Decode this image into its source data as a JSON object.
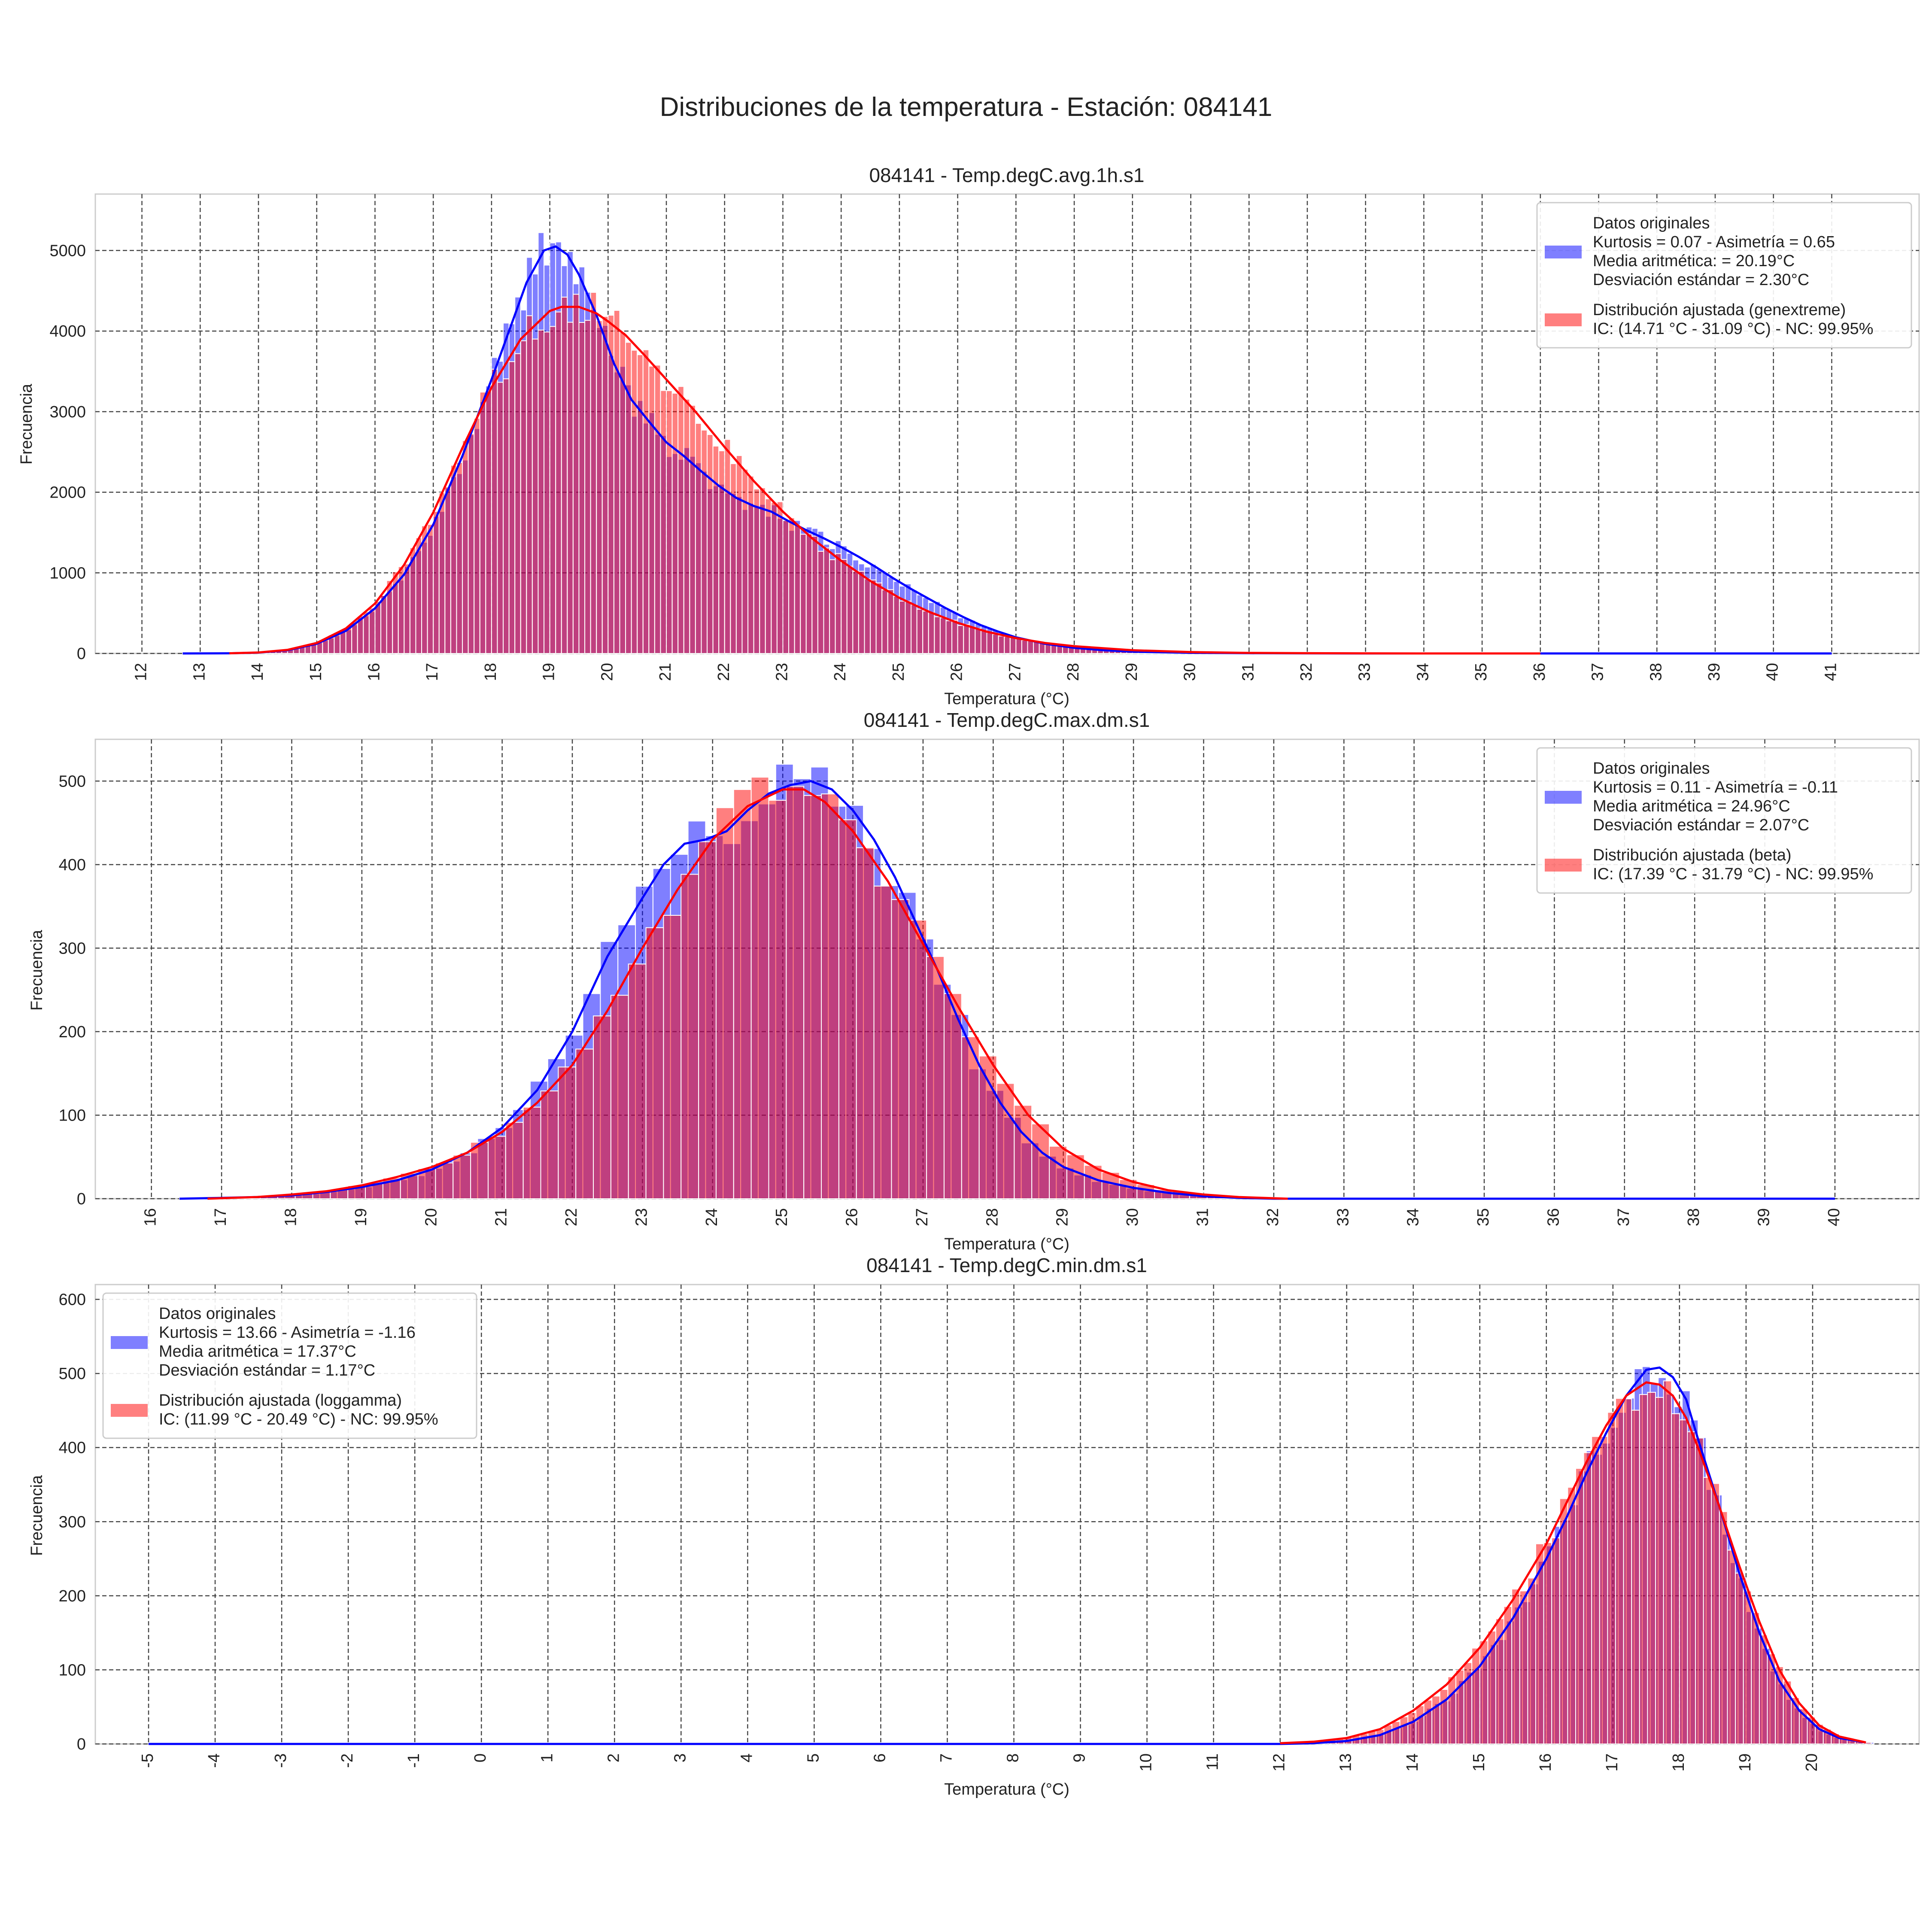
{
  "figure": {
    "title": "Distribuciones de la temperatura - Estación: 084141"
  },
  "chart_data": [
    {
      "type": "histogram",
      "title": "084141 - Temp.degC.avg.1h.s1",
      "xlabel": "Temperatura (°C)",
      "ylabel": "Frecuencia",
      "xlim": [
        11.2,
        42.5
      ],
      "ylim": [
        0,
        5700
      ],
      "xticks": [
        12,
        13,
        14,
        15,
        16,
        17,
        18,
        19,
        20,
        21,
        22,
        23,
        24,
        25,
        26,
        27,
        28,
        29,
        30,
        31,
        32,
        33,
        34,
        35,
        36,
        37,
        38,
        39,
        40,
        41
      ],
      "xtick_labels": [
        "12",
        "13",
        "14",
        "15",
        "16",
        "17",
        "18",
        "19",
        "20",
        "21",
        "22",
        "23",
        "24",
        "25",
        "26",
        "27",
        "28",
        "29",
        "30",
        "31",
        "32",
        "33",
        "34",
        "35",
        "36",
        "37",
        "38",
        "39",
        "40",
        "41"
      ],
      "yticks": [
        0,
        1000,
        2000,
        3000,
        4000,
        5000
      ],
      "ytick_labels": [
        "0",
        "1000",
        "2000",
        "3000",
        "4000",
        "5000"
      ],
      "grid": true,
      "legend_position": "upper right",
      "bin_width": 0.1,
      "series": [
        {
          "name": "Datos originales",
          "legend_lines": [
            "Datos originales",
            "Kurtosis = 0.07 - Asimetría = 0.65",
            "Media aritmética: = 20.19°C",
            "Desviación estándar = 2.30°C"
          ],
          "color": "#0000ff",
          "curve": {
            "x": [
              12.7,
              13.5,
              14,
              14.5,
              15,
              15.5,
              16,
              16.5,
              17,
              17.5,
              18,
              18.3,
              18.6,
              18.9,
              19.1,
              19.3,
              19.5,
              19.8,
              20.1,
              20.4,
              20.7,
              21,
              21.3,
              21.6,
              21.9,
              22.2,
              22.5,
              22.8,
              23.1,
              23.4,
              23.7,
              24,
              24.3,
              24.6,
              24.9,
              25.2,
              25.5,
              25.8,
              26.1,
              26.4,
              26.7,
              27,
              27.5,
              28,
              28.5,
              29,
              30,
              31,
              32,
              33,
              34,
              35,
              36,
              37,
              38,
              39,
              40,
              41
            ],
            "y": [
              0,
              2,
              10,
              40,
              120,
              280,
              560,
              980,
              1600,
              2450,
              3400,
              4000,
              4600,
              5000,
              5050,
              4950,
              4700,
              4200,
              3600,
              3150,
              2880,
              2620,
              2450,
              2260,
              2080,
              1930,
              1830,
              1760,
              1640,
              1530,
              1430,
              1320,
              1200,
              1070,
              930,
              800,
              680,
              560,
              450,
              350,
              270,
              200,
              120,
              70,
              40,
              22,
              8,
              3,
              1,
              0,
              0,
              0,
              0,
              0,
              0,
              0,
              0,
              0
            ]
          }
        },
        {
          "name": "Distribución ajustada (genextreme)",
          "legend_lines": [
            "Distribución ajustada (genextreme)",
            "IC: (14.71 °C - 31.09 °C) - NC: 99.95%"
          ],
          "color": "#ff0000",
          "curve": {
            "x": [
              13.5,
              14,
              14.5,
              15,
              15.5,
              16,
              16.5,
              17,
              17.5,
              18,
              18.5,
              19,
              19.2,
              19.5,
              19.8,
              20,
              20.3,
              20.6,
              21,
              21.5,
              22,
              22.5,
              23,
              23.5,
              24,
              24.5,
              25,
              25.5,
              26,
              26.5,
              27,
              27.5,
              28,
              29,
              30,
              31,
              32,
              33,
              34,
              35,
              36
            ],
            "y": [
              2,
              12,
              45,
              130,
              310,
              620,
              1100,
              1750,
              2550,
              3300,
              3900,
              4250,
              4300,
              4300,
              4220,
              4120,
              3950,
              3720,
              3400,
              3000,
              2560,
              2140,
              1760,
              1430,
              1150,
              900,
              690,
              520,
              380,
              270,
              190,
              130,
              90,
              40,
              17,
              7,
              3,
              1,
              0,
              0,
              0
            ]
          }
        }
      ]
    },
    {
      "type": "histogram",
      "title": "084141 - Temp.degC.max.dm.s1",
      "xlabel": "Temperatura (°C)",
      "ylabel": "Frecuencia",
      "xlim": [
        15.2,
        41.2
      ],
      "ylim": [
        0,
        550
      ],
      "xticks": [
        16,
        17,
        18,
        19,
        20,
        21,
        22,
        23,
        24,
        25,
        26,
        27,
        28,
        29,
        30,
        31,
        32,
        33,
        34,
        35,
        36,
        37,
        38,
        39,
        40
      ],
      "xtick_labels": [
        "16",
        "17",
        "18",
        "19",
        "20",
        "21",
        "22",
        "23",
        "24",
        "25",
        "26",
        "27",
        "28",
        "29",
        "30",
        "31",
        "32",
        "33",
        "34",
        "35",
        "36",
        "37",
        "38",
        "39",
        "40"
      ],
      "yticks": [
        0,
        100,
        200,
        300,
        400,
        500
      ],
      "ytick_labels": [
        "0",
        "100",
        "200",
        "300",
        "400",
        "500"
      ],
      "grid": true,
      "legend_position": "upper right",
      "bin_width": 0.25,
      "series": [
        {
          "name": "Datos originales",
          "legend_lines": [
            "Datos originales",
            "Kurtosis = 0.11 - Asimetría = -0.11",
            "Media aritmética = 24.96°C",
            "Desviación estándar = 2.07°C"
          ],
          "color": "#0000ff",
          "curve": {
            "x": [
              16.4,
              17,
              17.5,
              18,
              18.5,
              19,
              19.5,
              20,
              20.5,
              21,
              21.5,
              22,
              22.5,
              23,
              23.3,
              23.6,
              23.9,
              24.2,
              24.5,
              24.8,
              25.1,
              25.4,
              25.7,
              26,
              26.3,
              26.6,
              26.9,
              27.2,
              27.5,
              27.8,
              28.1,
              28.4,
              28.7,
              29,
              29.5,
              30,
              30.5,
              31,
              31.5,
              32,
              33,
              34,
              35,
              36,
              37,
              38,
              39,
              40
            ],
            "y": [
              0,
              1,
              2,
              4,
              8,
              14,
              22,
              35,
              55,
              85,
              130,
              200,
              290,
              360,
              400,
              425,
              430,
              440,
              465,
              485,
              495,
              500,
              490,
              465,
              430,
              385,
              330,
              275,
              215,
              160,
              115,
              80,
              55,
              38,
              22,
              13,
              7,
              3,
              1,
              0,
              0,
              0,
              0,
              0,
              0,
              0,
              0,
              0
            ]
          }
        },
        {
          "name": "Distribución ajustada (beta)",
          "legend_lines": [
            "Distribución ajustada (beta)",
            "IC: (17.39 °C - 31.79 °C) - NC: 99.95%"
          ],
          "color": "#ff0000",
          "curve": {
            "x": [
              16.8,
              17.5,
              18,
              18.5,
              19,
              19.5,
              20,
              20.5,
              21,
              21.5,
              22,
              22.5,
              23,
              23.5,
              24,
              24.5,
              25,
              25.3,
              25.6,
              26,
              26.5,
              27,
              27.5,
              28,
              28.5,
              29,
              29.5,
              30,
              30.5,
              31,
              31.5,
              32.2
            ],
            "y": [
              0,
              2,
              5,
              9,
              16,
              26,
              38,
              55,
              80,
              115,
              160,
              225,
              300,
              370,
              430,
              470,
              490,
              490,
              475,
              440,
              380,
              305,
              230,
              160,
              100,
              60,
              35,
              20,
              10,
              5,
              2,
              0
            ]
          }
        }
      ]
    },
    {
      "type": "histogram",
      "title": "084141 - Temp.degC.min.dm.s1",
      "xlabel": "Temperatura (°C)",
      "ylabel": "Frecuencia",
      "xlim": [
        -5.8,
        21.6
      ],
      "ylim": [
        0,
        620
      ],
      "xticks": [
        -5,
        -4,
        -3,
        -2,
        -1,
        0,
        1,
        2,
        3,
        4,
        5,
        6,
        7,
        8,
        9,
        10,
        11,
        12,
        13,
        14,
        15,
        16,
        17,
        18,
        19,
        20
      ],
      "xtick_labels": [
        "-5",
        "-4",
        "-3",
        "-2",
        "-1",
        "0",
        "1",
        "2",
        "3",
        "4",
        "5",
        "6",
        "7",
        "8",
        "9",
        "10",
        "11",
        "12",
        "13",
        "14",
        "15",
        "16",
        "17",
        "18",
        "19",
        "20"
      ],
      "yticks": [
        0,
        100,
        200,
        300,
        400,
        500,
        600
      ],
      "ytick_labels": [
        "0",
        "100",
        "200",
        "300",
        "400",
        "500",
        "600"
      ],
      "grid": true,
      "legend_position": "upper left",
      "bin_width": 0.12,
      "series": [
        {
          "name": "Datos originales",
          "legend_lines": [
            "Datos originales",
            "Kurtosis = 13.66 - Asimetría = -1.16",
            "Media aritmética = 17.37°C",
            "Desviación estándar = 1.17°C"
          ],
          "color": "#0000ff",
          "curve": {
            "x": [
              -5,
              0,
              5,
              10,
              12,
              12.5,
              13,
              13.5,
              14,
              14.5,
              15,
              15.5,
              16,
              16.3,
              16.6,
              16.9,
              17.2,
              17.5,
              17.7,
              17.9,
              18.1,
              18.3,
              18.6,
              18.9,
              19.2,
              19.5,
              19.8,
              20.1,
              20.4,
              20.8
            ],
            "y": [
              0,
              0,
              0,
              0,
              0,
              1,
              4,
              12,
              30,
              60,
              105,
              170,
              250,
              305,
              365,
              420,
              470,
              505,
              508,
              495,
              465,
              405,
              320,
              230,
              150,
              85,
              45,
              20,
              8,
              2
            ]
          }
        },
        {
          "name": "Distribución ajustada (loggamma)",
          "legend_lines": [
            "Distribución ajustada (loggamma)",
            "IC: (11.99 °C - 20.49 °C) - NC: 99.95%"
          ],
          "color": "#ff0000",
          "curve": {
            "x": [
              12,
              12.5,
              13,
              13.5,
              14,
              14.5,
              15,
              15.5,
              16,
              16.3,
              16.6,
              16.9,
              17.2,
              17.5,
              17.7,
              17.9,
              18.1,
              18.3,
              18.6,
              18.9,
              19.2,
              19.5,
              19.8,
              20.1,
              20.4,
              20.8
            ],
            "y": [
              1,
              3,
              8,
              20,
              45,
              80,
              130,
              195,
              270,
              325,
              380,
              430,
              470,
              488,
              485,
              470,
              440,
              395,
              320,
              240,
              165,
              100,
              55,
              25,
              10,
              2
            ]
          }
        }
      ]
    }
  ]
}
